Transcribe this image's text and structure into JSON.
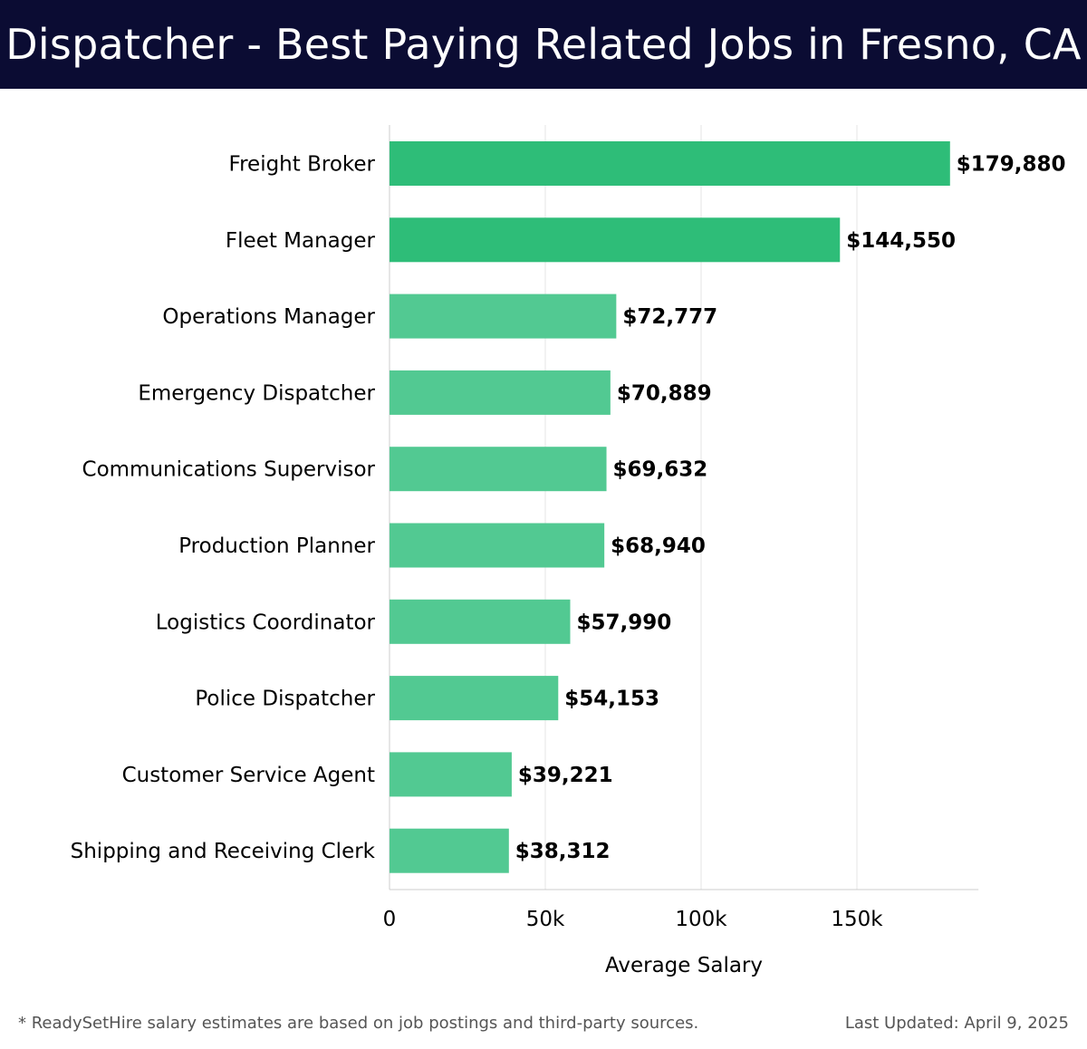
{
  "header": {
    "title": "Dispatcher - Best Paying Related Jobs in Fresno, CA"
  },
  "chart_data": {
    "type": "bar",
    "orientation": "horizontal",
    "categories": [
      "Freight Broker",
      "Fleet Manager",
      "Operations Manager",
      "Emergency Dispatcher",
      "Communications Supervisor",
      "Production Planner",
      "Logistics Coordinator",
      "Police Dispatcher",
      "Customer Service Agent",
      "Shipping and Receiving Clerk"
    ],
    "values": [
      179880,
      144550,
      72777,
      70889,
      69632,
      68940,
      57990,
      54153,
      39221,
      38312
    ],
    "value_labels": [
      "$179,880",
      "$144,550",
      "$72,777",
      "$70,889",
      "$69,632",
      "$68,940",
      "$57,990",
      "$54,153",
      "$39,221",
      "$38,312"
    ],
    "xlabel": "Average Salary",
    "ylabel": "",
    "xlim": [
      0,
      189000
    ],
    "xticks": [
      0,
      50000,
      100000,
      150000
    ],
    "xtick_labels": [
      "0",
      "50k",
      "100k",
      "150k"
    ],
    "grid": true,
    "colors": {
      "top_bars": "#2ebd78",
      "other_bars": "#52c992",
      "grid": "#e4e4e4",
      "axis": "#cccccc"
    }
  },
  "footer": {
    "note": "* ReadySetHire salary estimates are based on job postings and third-party sources.",
    "updated": "Last Updated: April 9, 2025"
  }
}
